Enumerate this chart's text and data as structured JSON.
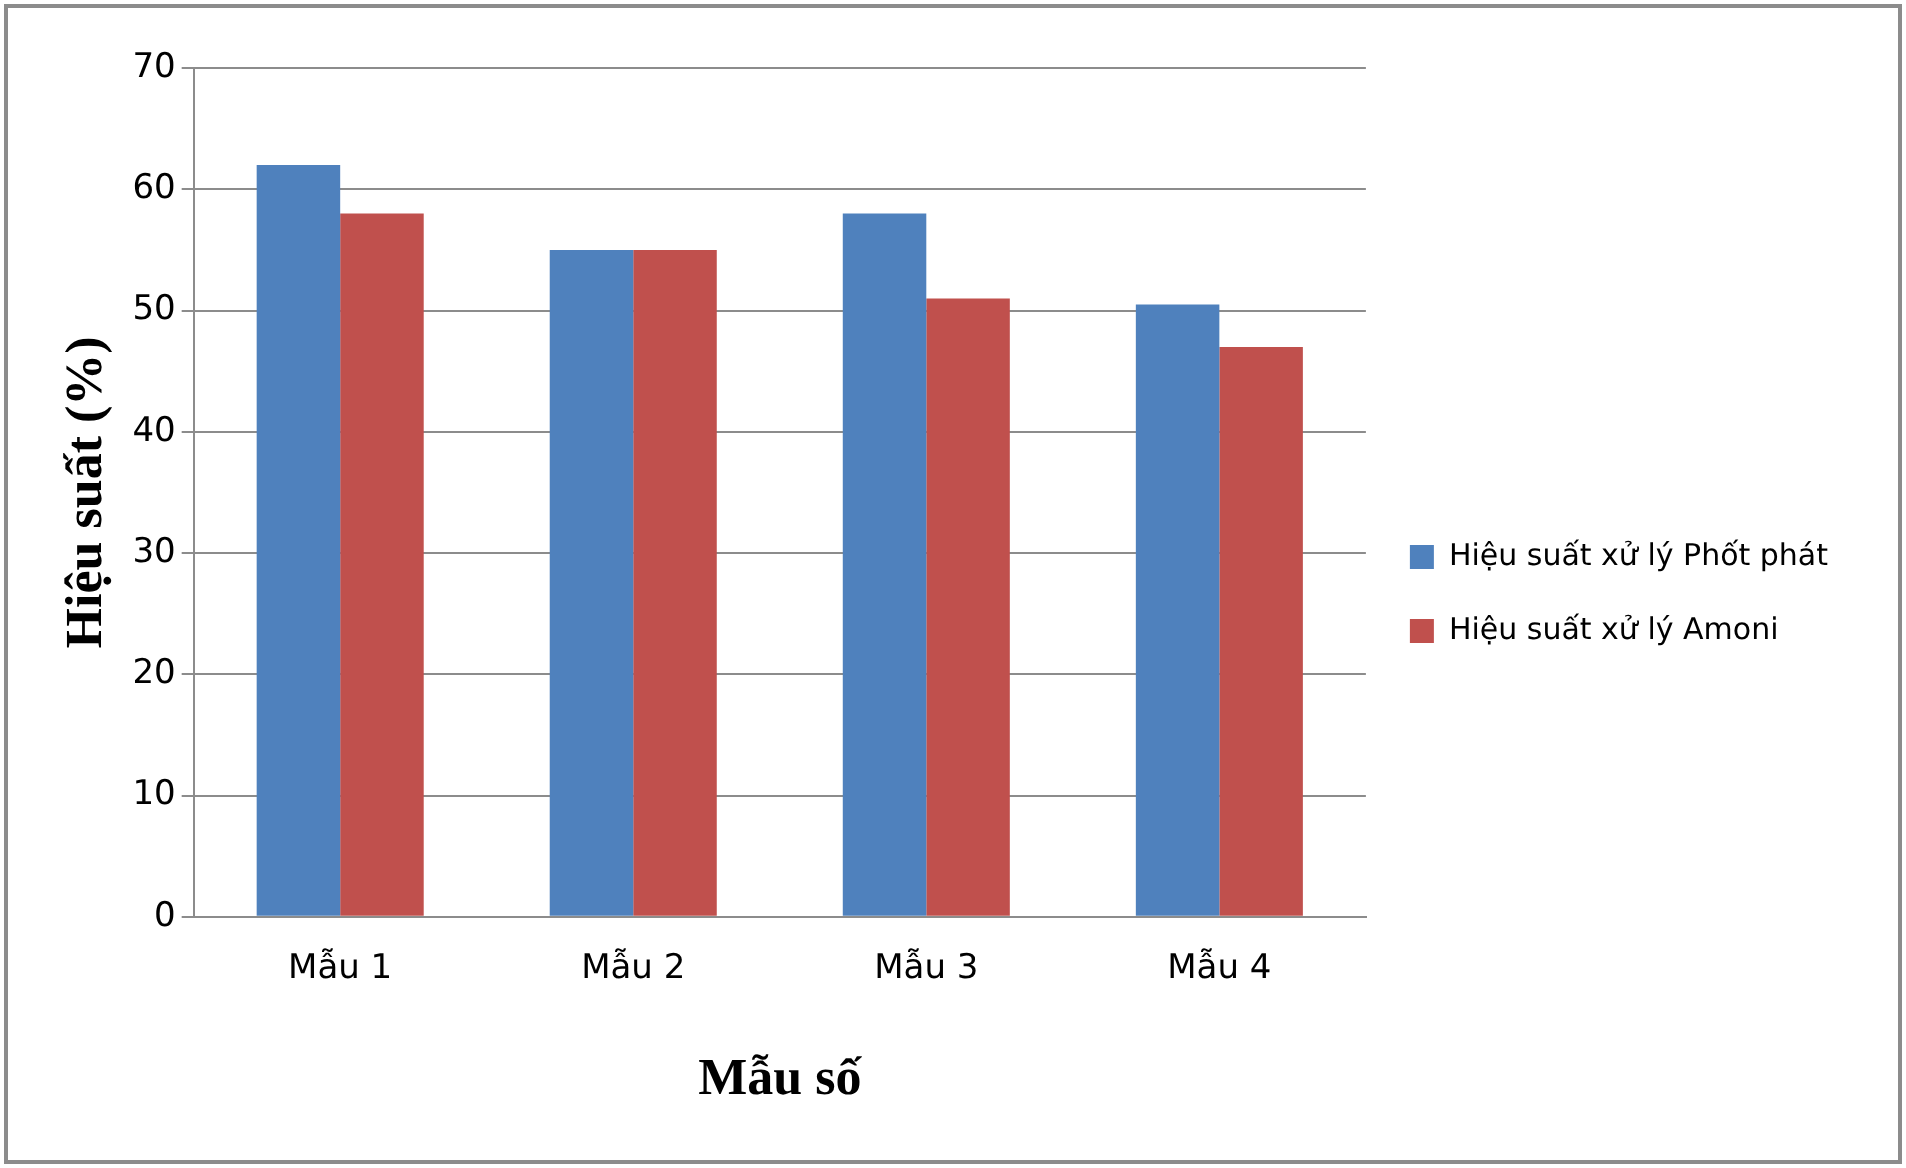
{
  "chart_data": {
    "type": "bar",
    "xlabel": "Mẫu số",
    "ylabel": "Hiệu suất (%)",
    "categories": [
      "Mẫu 1",
      "Mẫu 2",
      "Mẫu 3",
      "Mẫu 4"
    ],
    "series": [
      {
        "name": "Hiệu suất xử lý Phốt phát",
        "color": "#4f81bd",
        "values": [
          62,
          55,
          58,
          50.5
        ]
      },
      {
        "name": "Hiệu suất xử lý Amoni",
        "color": "#c0504d",
        "values": [
          58,
          55,
          51,
          47
        ]
      }
    ],
    "ylim": [
      0,
      70
    ],
    "yticks": [
      0,
      10,
      20,
      30,
      40,
      50,
      60,
      70
    ],
    "grid": "y",
    "legend": "right"
  }
}
